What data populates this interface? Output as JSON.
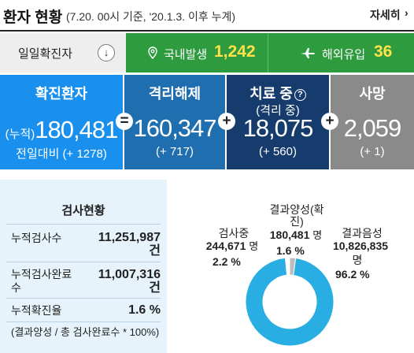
{
  "header": {
    "title": "환자 현황",
    "subtitle": "(7.20. 00시 기준, '20.1.3. 이후 누계)",
    "more_label": "자세히"
  },
  "daily": {
    "label": "일일확진자",
    "domestic": {
      "label": "국내발생",
      "value": "1,242",
      "icon": "location-pin-icon"
    },
    "imported": {
      "label": "해외유입",
      "value": "36",
      "icon": "airplane-icon"
    }
  },
  "stats": {
    "confirmed": {
      "label": "확진환자",
      "prefix": "(누적)",
      "value": "180,481",
      "delta": "전일대비 (+ 1278)"
    },
    "released": {
      "label": "격리해제",
      "value": "160,347",
      "delta": "(+ 717)"
    },
    "treatment": {
      "label": "치료 중",
      "sublabel": "(격리 중)",
      "value": "18,075",
      "delta": "(+ 560)"
    },
    "deaths": {
      "label": "사망",
      "value": "2,059",
      "delta": "(+ 1)"
    },
    "operators": [
      "=",
      "+",
      "+"
    ]
  },
  "tests": {
    "title": "검사현황",
    "rows": [
      {
        "label": "누적검사수",
        "value": "11,251,987",
        "unit": "건"
      },
      {
        "label_line1": "누적검사완료",
        "label_line2": "수",
        "value": "11,007,316",
        "unit": "건"
      },
      {
        "label": "누적확진율",
        "value": "1.6 %"
      }
    ],
    "note": "(결과양성 / 총 검사완료수 * 100%)"
  },
  "results": {
    "testing": {
      "label": "검사중",
      "value": "244,671",
      "unit": "명",
      "percent": "2.2 %"
    },
    "positive": {
      "label_line1": "결과양성(확",
      "label_line2": "진)",
      "value": "180,481",
      "unit": "명",
      "percent": "1.6 %"
    },
    "negative": {
      "label": "결과음성",
      "value": "10,826,835",
      "unit": "명",
      "percent": "96.2 %"
    },
    "donut_fractions": {
      "negative": 0.962,
      "testing": 0.022,
      "positive": 0.016
    },
    "colors": {
      "negative": "#29aee3",
      "testing": "#bcbcbc",
      "positive": "#ffffff"
    }
  },
  "colors": {
    "confirmed_bg": "#1a90ee",
    "released_bg": "#1f6fb0",
    "treatment_bg": "#163c6e",
    "deaths_bg": "#8a8a8a",
    "daily_green": "#2e9c3e",
    "highlight_yellow": "#ffe14a"
  }
}
